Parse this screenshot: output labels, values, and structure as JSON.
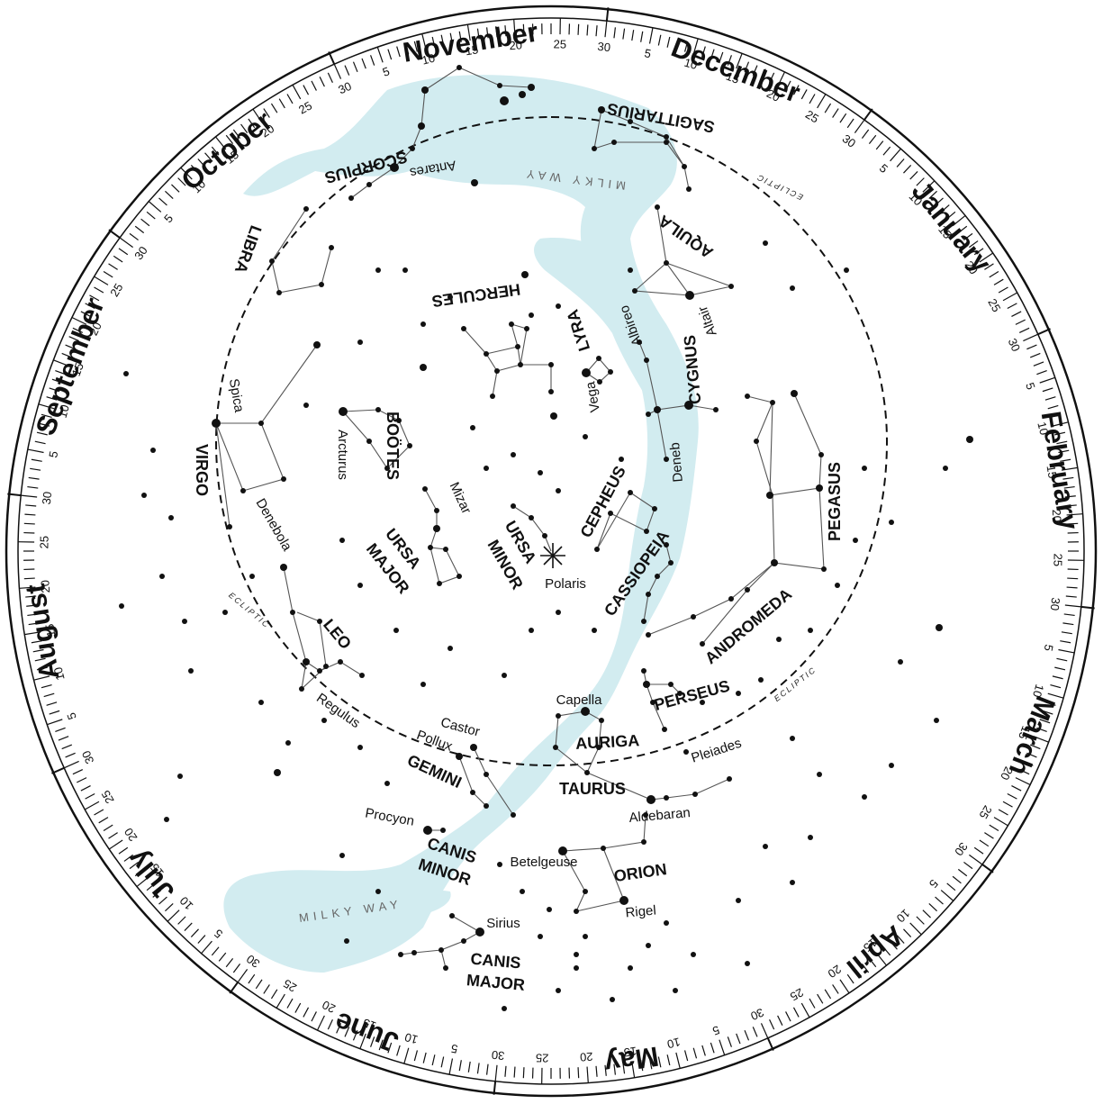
{
  "months": [
    {
      "name": "December",
      "start": 6
    },
    {
      "name": "January",
      "start": 36
    },
    {
      "name": "February",
      "start": 66
    },
    {
      "name": "March",
      "start": 96
    },
    {
      "name": "April",
      "start": 126
    },
    {
      "name": "May",
      "start": 156
    },
    {
      "name": "June",
      "start": 186
    },
    {
      "name": "July",
      "start": 216
    },
    {
      "name": "August",
      "start": 246
    },
    {
      "name": "September",
      "start": 276
    },
    {
      "name": "October",
      "start": 306
    },
    {
      "name": "November",
      "start": 336
    }
  ],
  "day_labels": [
    "5",
    "10",
    "15",
    "20",
    "25",
    "30"
  ],
  "constellations": {
    "scorpius": "SCORPIUS",
    "sagittarius": "SAGITTARIUS",
    "aquila": "AQUILA",
    "libra": "LIBRA",
    "hercules": "HERCULES",
    "lyra": "LYRA",
    "cygnus": "CYGNUS",
    "virgo": "VIRGO",
    "bootes": "BOÖTES",
    "cepheus": "CEPHEUS",
    "pegasus": "PEGASUS",
    "ursa_major": [
      "URSA",
      "MAJOR"
    ],
    "ursa_minor": [
      "URSA",
      "MINOR"
    ],
    "cassiopeia": "CASSIOPEIA",
    "andromeda": "ANDROMEDA",
    "leo": "LEO",
    "perseus": "PERSEUS",
    "auriga": "AURIGA",
    "gemini": "GEMINI",
    "taurus": "TAURUS",
    "orion": "ORION",
    "canis_minor": [
      "CANIS",
      "MINOR"
    ],
    "canis_major": [
      "CANIS",
      "MAJOR"
    ]
  },
  "stars": {
    "antares": "Antares",
    "altair": "Altair",
    "albireo": "Albireo",
    "vega": "Vega",
    "deneb": "Deneb",
    "spica": "Spica",
    "arcturus": "Arcturus",
    "mizar": "Mizar",
    "polaris": "Polaris",
    "denebola": "Denebola",
    "regulus": "Regulus",
    "capella": "Capella",
    "castor": "Castor",
    "pollux": "Pollux",
    "pleiades": "Pleiades",
    "aldebaran": "Aldebaran",
    "procyon": "Procyon",
    "betelgeuse": "Betelgeuse",
    "rigel": "Rigel",
    "sirius": "Sirius"
  },
  "milky_way_label": "MILKY WAY",
  "ecliptic_label": "ECLIPTIC",
  "colors": {
    "milky_way": "#d2ecf0",
    "ink": "#111111",
    "lines": "#555555"
  }
}
